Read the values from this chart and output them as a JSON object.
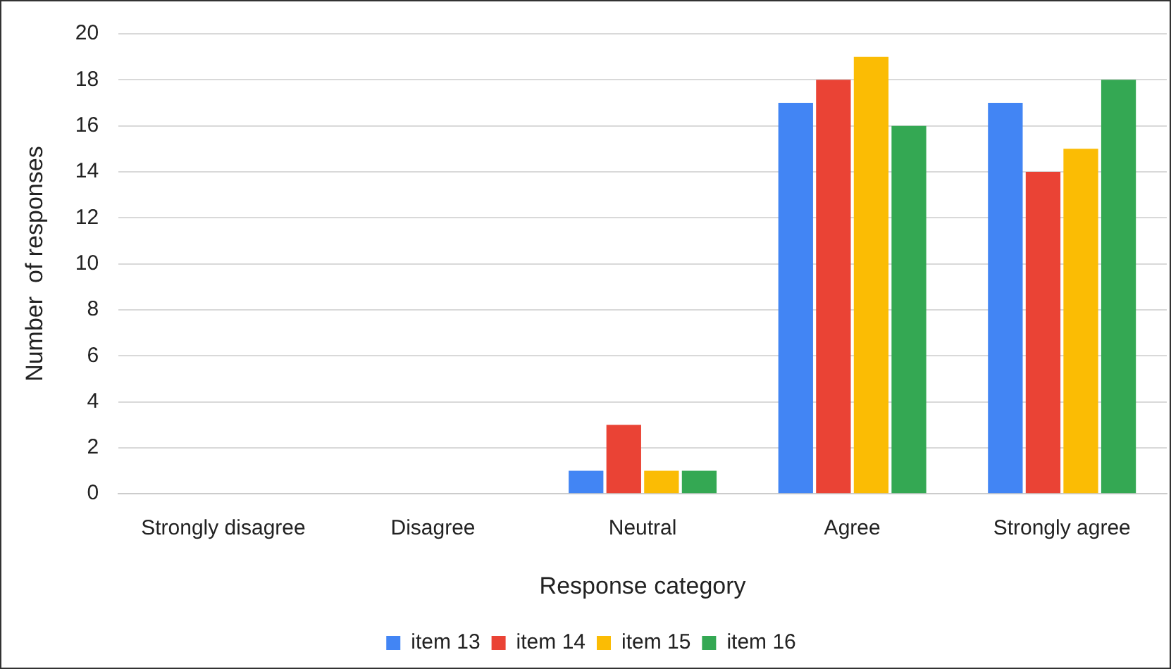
{
  "chart_data": {
    "type": "bar",
    "xlabel": "Response category",
    "ylabel": "Number  of responses",
    "categories": [
      "Strongly disagree",
      "Disagree",
      "Neutral",
      "Agree",
      "Strongly agree"
    ],
    "series": [
      {
        "name": "item 13",
        "color": "#4285f4",
        "values": [
          0,
          0,
          1,
          17,
          17
        ]
      },
      {
        "name": "item 14",
        "color": "#ea4335",
        "values": [
          0,
          0,
          3,
          18,
          14
        ]
      },
      {
        "name": "item 15",
        "color": "#fbbc04",
        "values": [
          0,
          0,
          1,
          19,
          15
        ]
      },
      {
        "name": "item 16",
        "color": "#34a853",
        "values": [
          0,
          0,
          1,
          16,
          18
        ]
      }
    ],
    "ylim": [
      0,
      20
    ],
    "yticks": [
      0,
      2,
      4,
      6,
      8,
      10,
      12,
      14,
      16,
      18,
      20
    ],
    "grid": "y",
    "legend": "bottom"
  }
}
